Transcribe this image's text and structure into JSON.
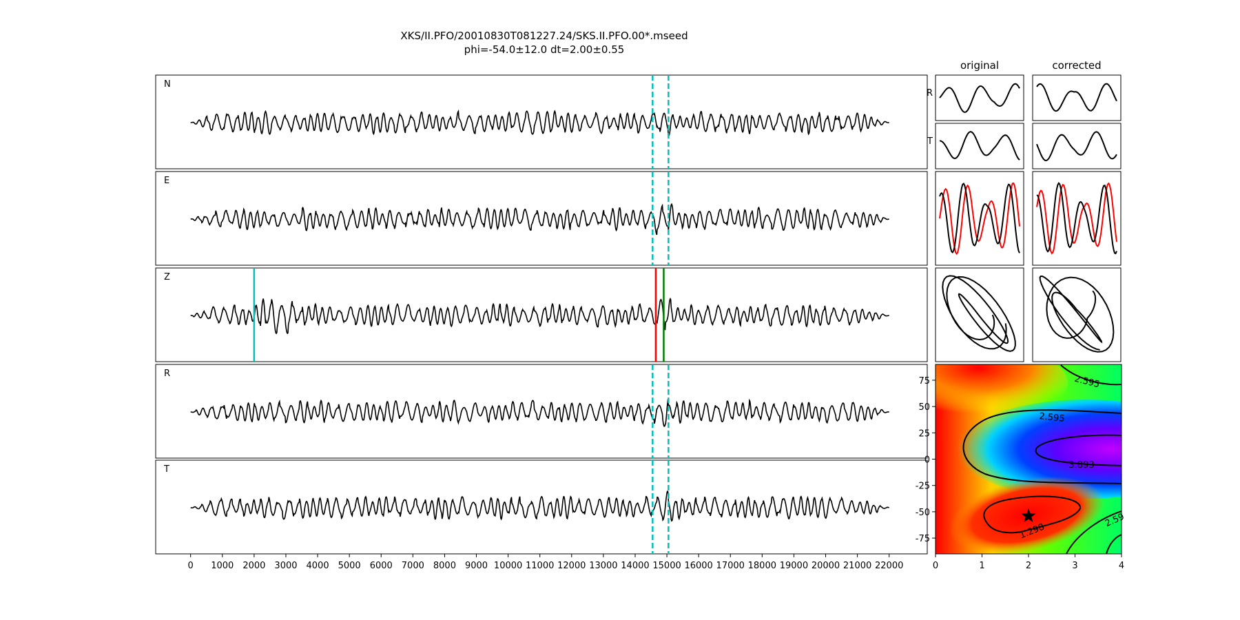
{
  "title_line1": "XKS/II.PFO/20010830T081227.24/SKS.II.PFO.00*.mseed",
  "title_line2": "phi=-54.0±12.0 dt=2.00±0.55",
  "colors": {
    "trace": "#000000",
    "window": "#00bfbf",
    "pick_cyan": "#00bfbf",
    "pick_red": "#ff0000",
    "pick_green": "#008000",
    "overlay_red": "#ff0000"
  },
  "chart_data": [
    {
      "type": "line",
      "name": "seismograms",
      "panels": [
        "N",
        "E",
        "Z",
        "R",
        "T"
      ],
      "xlim": [
        -1100,
        23200
      ],
      "xticks": [
        0,
        1000,
        2000,
        3000,
        4000,
        5000,
        6000,
        7000,
        8000,
        9000,
        10000,
        11000,
        12000,
        13000,
        14000,
        15000,
        16000,
        17000,
        18000,
        19000,
        20000,
        21000,
        22000
      ],
      "trace_x_range": [
        0,
        22000
      ],
      "window_lines_x": [
        14550,
        15050
      ],
      "z_picks": [
        {
          "x": 2000,
          "color": "cyan"
        },
        {
          "x": 14650,
          "color": "red"
        },
        {
          "x": 14900,
          "color": "green"
        }
      ]
    },
    {
      "type": "line",
      "name": "particle-panels",
      "column_titles": [
        "original",
        "corrected"
      ],
      "row_labels": [
        "R",
        "T"
      ],
      "rows": [
        "R",
        "T",
        "overlay",
        "particle-motion"
      ]
    },
    {
      "type": "heatmap",
      "name": "error-surface",
      "xlim": [
        0,
        4
      ],
      "ylim": [
        -90,
        90
      ],
      "xticks": [
        0,
        1,
        2,
        3,
        4
      ],
      "yticks": [
        75,
        50,
        25,
        0,
        -25,
        -50,
        -75
      ],
      "colormap": "hsv",
      "contour_labels": [
        "2.595",
        "2.595",
        "3.893",
        "1.298",
        "2.59"
      ],
      "best_fit": {
        "dt": 2.0,
        "phi": -54.0
      }
    }
  ]
}
